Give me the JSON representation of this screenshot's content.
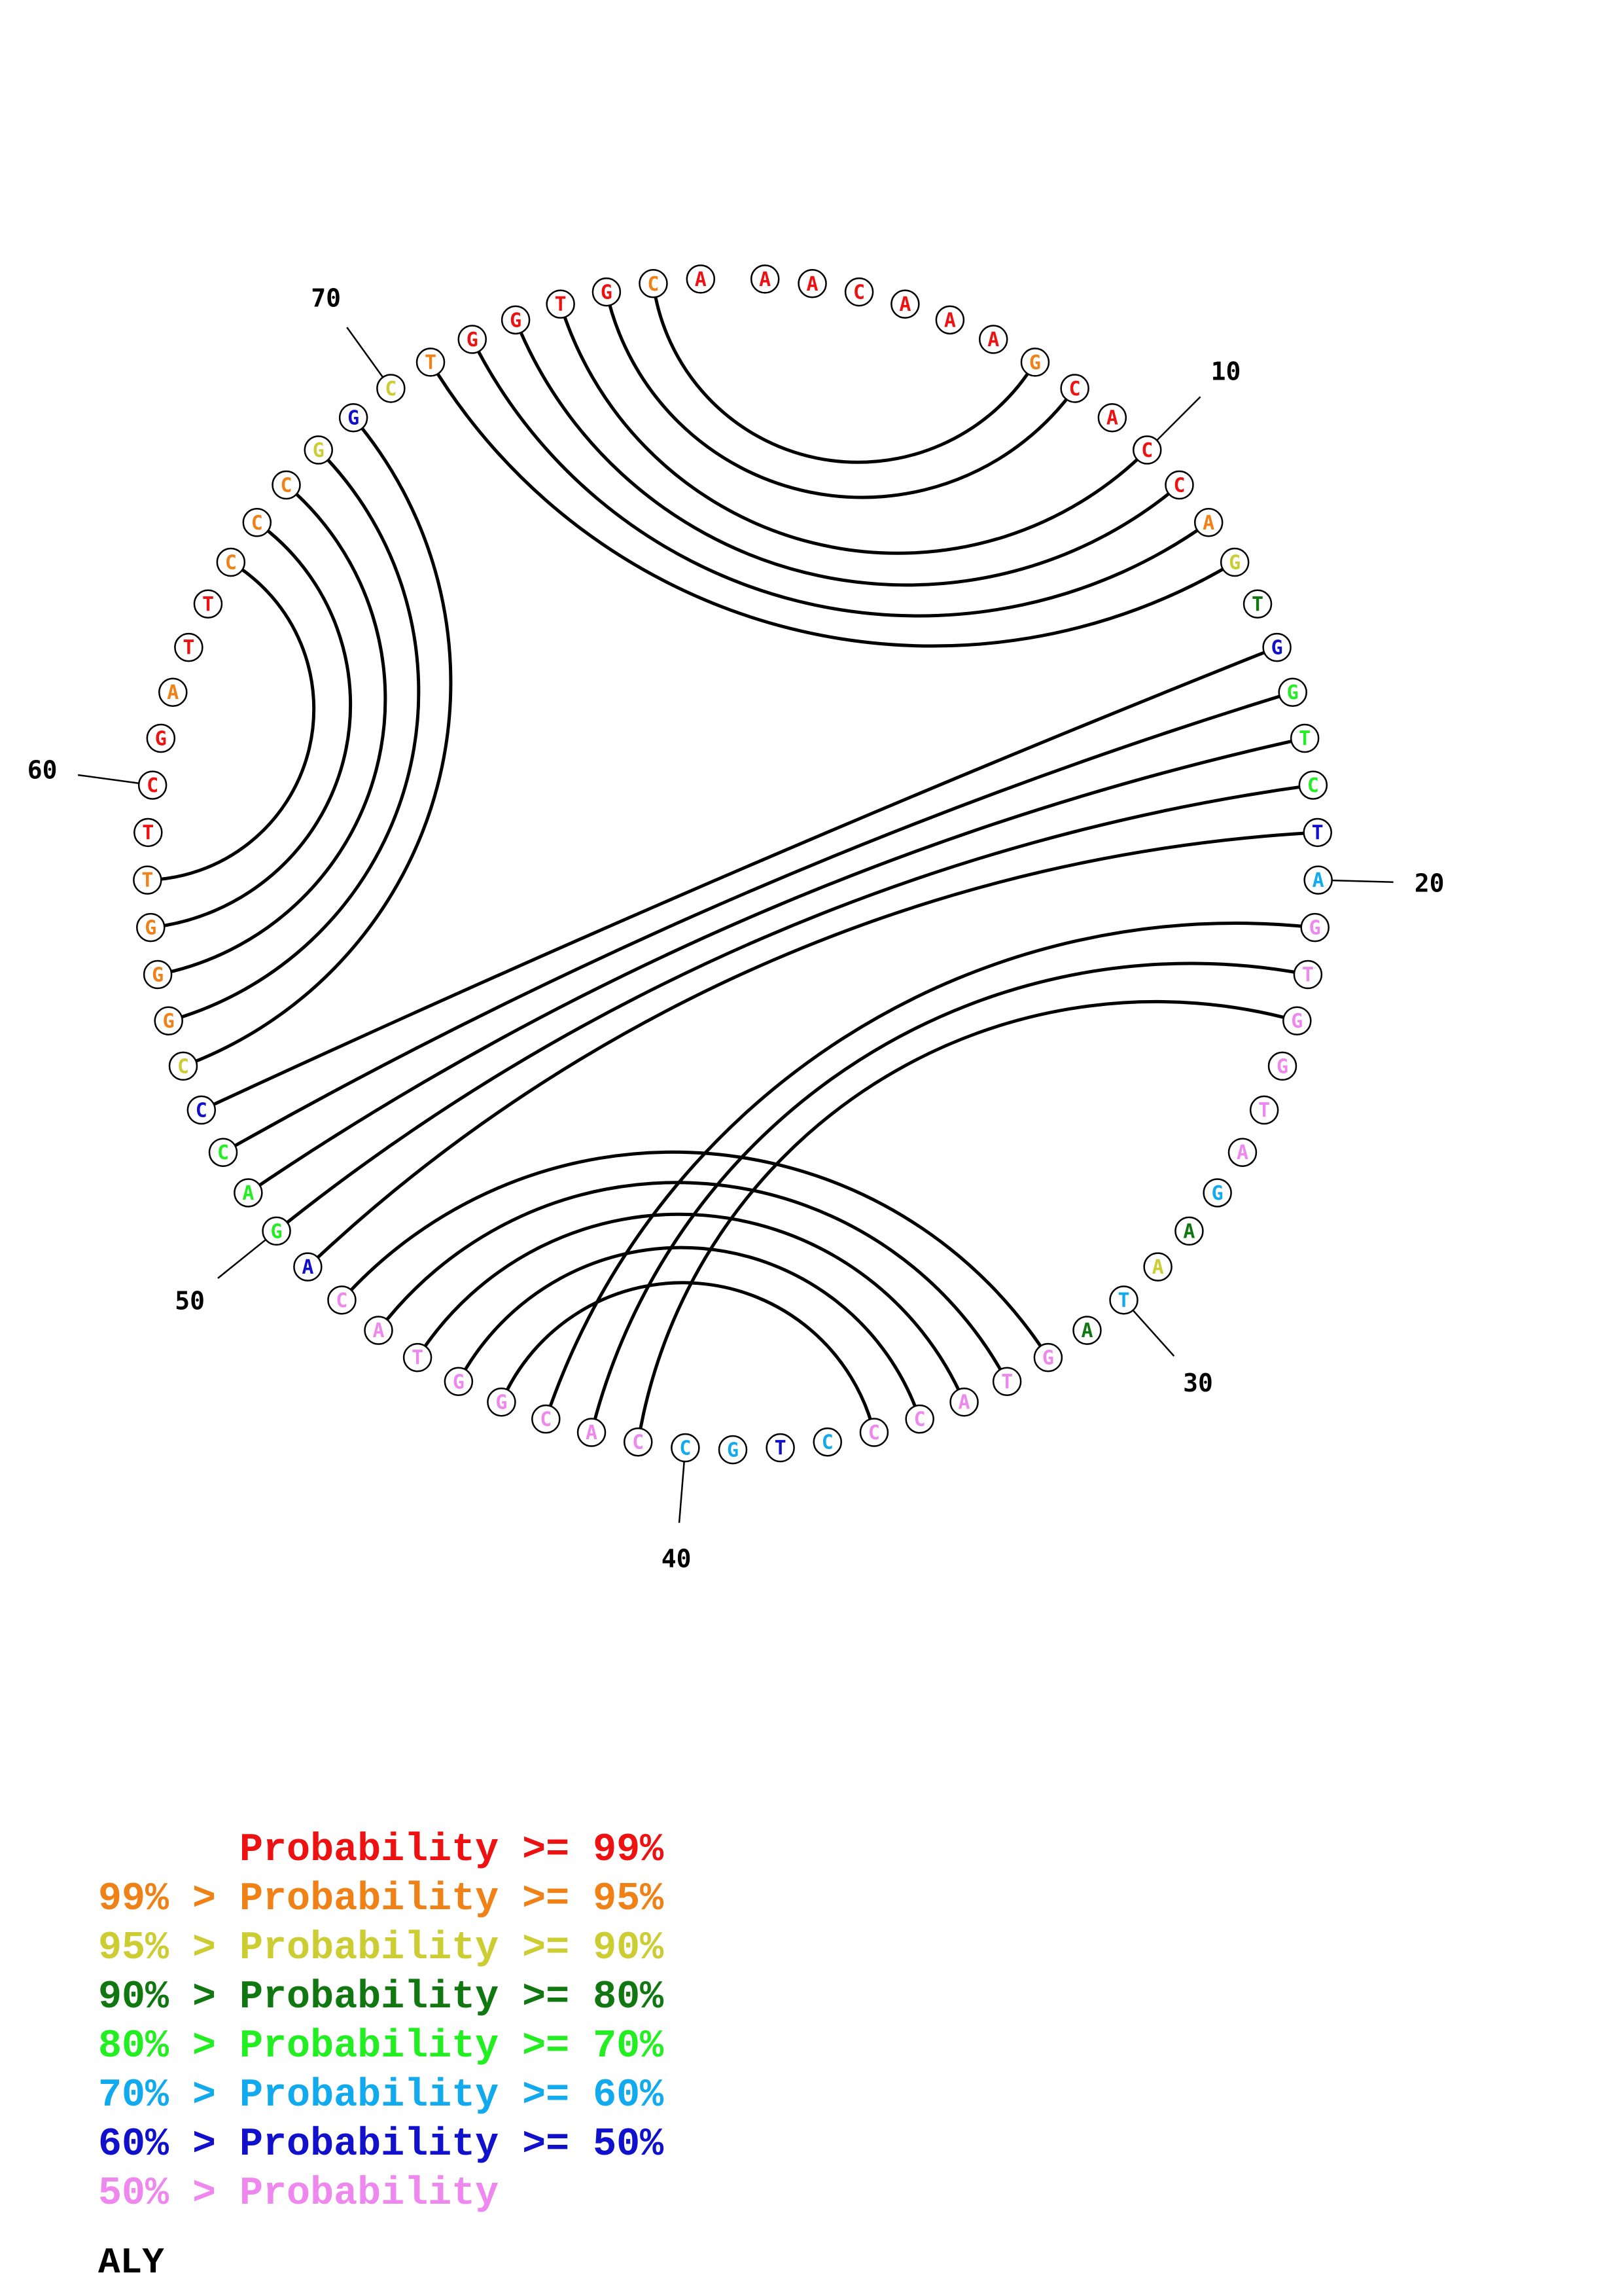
{
  "colors": {
    "p99": "#ee1111",
    "p95": "#ef8117",
    "p90": "#cccc33",
    "p80": "#117711",
    "p70": "#22ee22",
    "p60": "#11aaee",
    "p50": "#1111cc",
    "plow": "#ee88ee"
  },
  "sequence": [
    {
      "n": 1,
      "base": "A",
      "prob": "p99"
    },
    {
      "n": 2,
      "base": "A",
      "prob": "p99"
    },
    {
      "n": 3,
      "base": "C",
      "prob": "p99"
    },
    {
      "n": 4,
      "base": "A",
      "prob": "p99"
    },
    {
      "n": 5,
      "base": "A",
      "prob": "p99"
    },
    {
      "n": 6,
      "base": "A",
      "prob": "p99"
    },
    {
      "n": 7,
      "base": "G",
      "prob": "p95"
    },
    {
      "n": 8,
      "base": "C",
      "prob": "p99"
    },
    {
      "n": 9,
      "base": "A",
      "prob": "p99"
    },
    {
      "n": 10,
      "base": "C",
      "prob": "p99"
    },
    {
      "n": 11,
      "base": "C",
      "prob": "p99"
    },
    {
      "n": 12,
      "base": "A",
      "prob": "p95"
    },
    {
      "n": 13,
      "base": "G",
      "prob": "p90"
    },
    {
      "n": 14,
      "base": "T",
      "prob": "p80"
    },
    {
      "n": 15,
      "base": "G",
      "prob": "p50"
    },
    {
      "n": 16,
      "base": "G",
      "prob": "p70"
    },
    {
      "n": 17,
      "base": "T",
      "prob": "p70"
    },
    {
      "n": 18,
      "base": "C",
      "prob": "p70"
    },
    {
      "n": 19,
      "base": "T",
      "prob": "p50"
    },
    {
      "n": 20,
      "base": "A",
      "prob": "p60"
    },
    {
      "n": 21,
      "base": "G",
      "prob": "plow"
    },
    {
      "n": 22,
      "base": "T",
      "prob": "plow"
    },
    {
      "n": 23,
      "base": "G",
      "prob": "plow"
    },
    {
      "n": 24,
      "base": "G",
      "prob": "plow"
    },
    {
      "n": 25,
      "base": "T",
      "prob": "plow"
    },
    {
      "n": 26,
      "base": "A",
      "prob": "plow"
    },
    {
      "n": 27,
      "base": "G",
      "prob": "p60"
    },
    {
      "n": 28,
      "base": "A",
      "prob": "p80"
    },
    {
      "n": 29,
      "base": "A",
      "prob": "p90"
    },
    {
      "n": 30,
      "base": "T",
      "prob": "p60"
    },
    {
      "n": 31,
      "base": "A",
      "prob": "p80"
    },
    {
      "n": 32,
      "base": "G",
      "prob": "plow"
    },
    {
      "n": 33,
      "base": "T",
      "prob": "plow"
    },
    {
      "n": 34,
      "base": "A",
      "prob": "plow"
    },
    {
      "n": 35,
      "base": "C",
      "prob": "plow"
    },
    {
      "n": 36,
      "base": "C",
      "prob": "plow"
    },
    {
      "n": 37,
      "base": "C",
      "prob": "p60"
    },
    {
      "n": 38,
      "base": "T",
      "prob": "p50"
    },
    {
      "n": 39,
      "base": "G",
      "prob": "p60"
    },
    {
      "n": 40,
      "base": "C",
      "prob": "p60"
    },
    {
      "n": 41,
      "base": "C",
      "prob": "plow"
    },
    {
      "n": 42,
      "base": "A",
      "prob": "plow"
    },
    {
      "n": 43,
      "base": "C",
      "prob": "plow"
    },
    {
      "n": 44,
      "base": "G",
      "prob": "plow"
    },
    {
      "n": 45,
      "base": "G",
      "prob": "plow"
    },
    {
      "n": 46,
      "base": "T",
      "prob": "plow"
    },
    {
      "n": 47,
      "base": "A",
      "prob": "plow"
    },
    {
      "n": 48,
      "base": "C",
      "prob": "plow"
    },
    {
      "n": 49,
      "base": "A",
      "prob": "p50"
    },
    {
      "n": 50,
      "base": "G",
      "prob": "p70"
    },
    {
      "n": 51,
      "base": "A",
      "prob": "p70"
    },
    {
      "n": 52,
      "base": "C",
      "prob": "p70"
    },
    {
      "n": 53,
      "base": "C",
      "prob": "p50"
    },
    {
      "n": 54,
      "base": "C",
      "prob": "p90"
    },
    {
      "n": 55,
      "base": "G",
      "prob": "p95"
    },
    {
      "n": 56,
      "base": "G",
      "prob": "p95"
    },
    {
      "n": 57,
      "base": "G",
      "prob": "p95"
    },
    {
      "n": 58,
      "base": "T",
      "prob": "p95"
    },
    {
      "n": 59,
      "base": "T",
      "prob": "p99"
    },
    {
      "n": 60,
      "base": "C",
      "prob": "p99"
    },
    {
      "n": 61,
      "base": "G",
      "prob": "p99"
    },
    {
      "n": 62,
      "base": "A",
      "prob": "p95"
    },
    {
      "n": 63,
      "base": "T",
      "prob": "p99"
    },
    {
      "n": 64,
      "base": "T",
      "prob": "p99"
    },
    {
      "n": 65,
      "base": "C",
      "prob": "p95"
    },
    {
      "n": 66,
      "base": "C",
      "prob": "p95"
    },
    {
      "n": 67,
      "base": "C",
      "prob": "p95"
    },
    {
      "n": 68,
      "base": "G",
      "prob": "p90"
    },
    {
      "n": 69,
      "base": "G",
      "prob": "p50"
    },
    {
      "n": 70,
      "base": "C",
      "prob": "p90"
    },
    {
      "n": 71,
      "base": "T",
      "prob": "p95"
    },
    {
      "n": 72,
      "base": "G",
      "prob": "p99"
    },
    {
      "n": 73,
      "base": "G",
      "prob": "p99"
    },
    {
      "n": 74,
      "base": "T",
      "prob": "p99"
    },
    {
      "n": 75,
      "base": "G",
      "prob": "p99"
    },
    {
      "n": 76,
      "base": "C",
      "prob": "p95"
    },
    {
      "n": 77,
      "base": "A",
      "prob": "p99"
    }
  ],
  "pairs": [
    [
      7,
      76
    ],
    [
      8,
      75
    ],
    [
      10,
      74
    ],
    [
      11,
      73
    ],
    [
      12,
      72
    ],
    [
      13,
      71
    ],
    [
      15,
      53
    ],
    [
      16,
      52
    ],
    [
      17,
      51
    ],
    [
      18,
      50
    ],
    [
      19,
      49
    ],
    [
      21,
      43
    ],
    [
      22,
      42
    ],
    [
      23,
      41
    ],
    [
      32,
      48
    ],
    [
      33,
      47
    ],
    [
      34,
      46
    ],
    [
      35,
      45
    ],
    [
      36,
      44
    ],
    [
      54,
      69
    ],
    [
      55,
      68
    ],
    [
      56,
      67
    ],
    [
      57,
      66
    ],
    [
      58,
      65
    ]
  ],
  "tick_labels": [
    {
      "n": 10,
      "label": "10"
    },
    {
      "n": 20,
      "label": "20"
    },
    {
      "n": 30,
      "label": "30"
    },
    {
      "n": 40,
      "label": "40"
    },
    {
      "n": 50,
      "label": "50"
    },
    {
      "n": 60,
      "label": "60"
    },
    {
      "n": 70,
      "label": "70"
    }
  ],
  "legend": [
    {
      "prefix": "",
      "mid": "Probability",
      "suffix": ">= 99%",
      "prefix_key": null,
      "mid_key": "p99",
      "suffix_key": "p99"
    },
    {
      "prefix": "99% > ",
      "mid": "Probability",
      "suffix": ">= 95%",
      "prefix_key": "p95",
      "mid_key": "p95",
      "suffix_key": "p95"
    },
    {
      "prefix": "95% > ",
      "mid": "Probability",
      "suffix": ">= 90%",
      "prefix_key": "p90",
      "mid_key": "p90",
      "suffix_key": "p90"
    },
    {
      "prefix": "90% > ",
      "mid": "Probability",
      "suffix": ">= 80%",
      "prefix_key": "p80",
      "mid_key": "p80",
      "suffix_key": "p80"
    },
    {
      "prefix": "80% > ",
      "mid": "Probability",
      "suffix": ">= 70%",
      "prefix_key": "p70",
      "mid_key": "p70",
      "suffix_key": "p70"
    },
    {
      "prefix": "70% > ",
      "mid": "Probability",
      "suffix": ">= 60%",
      "prefix_key": "p60",
      "mid_key": "p60",
      "suffix_key": "p60"
    },
    {
      "prefix": "60% > ",
      "mid": "Probability",
      "suffix": ">= 50%",
      "prefix_key": "p50",
      "mid_key": "p50",
      "suffix_key": "p50"
    },
    {
      "prefix": "50% > ",
      "mid": "Probability",
      "suffix": "",
      "prefix_key": "plow",
      "mid_key": "plow",
      "suffix_key": "plow"
    }
  ],
  "structure_name": "ALY"
}
